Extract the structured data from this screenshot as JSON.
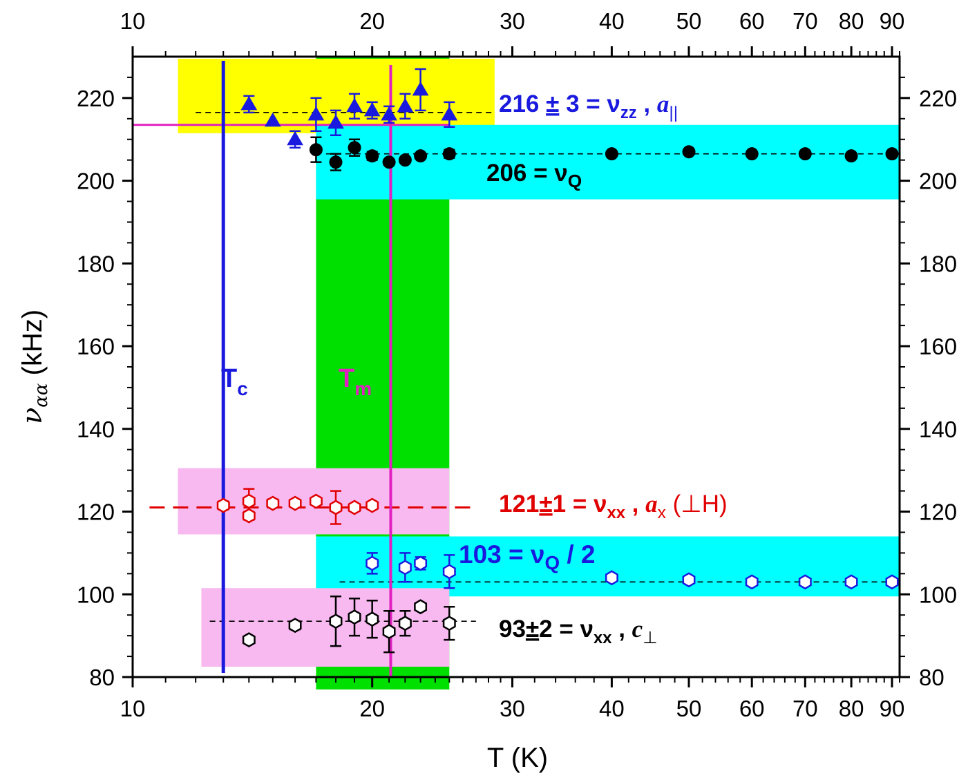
{
  "chart_data": {
    "type": "scatter",
    "xlabel": "T (K)",
    "ylabel_main": "ν",
    "ylabel_sub": "αα",
    "ylabel_unit": "(kHz)",
    "x_scale": "log",
    "xlim": [
      10,
      92
    ],
    "ylim": [
      80,
      230
    ],
    "x_ticks": [
      10,
      20,
      30,
      40,
      50,
      60,
      70,
      80,
      90
    ],
    "y_ticks": [
      80,
      100,
      120,
      140,
      160,
      180,
      200,
      220
    ],
    "colors": {
      "yellow_band": "#ffff00",
      "cyan_band": "#00ffff",
      "green_band": "#00e000",
      "pink_band": "#f8b8f0",
      "blue": "#1a1adf",
      "magenta": "#e020c0",
      "red": "#e00000",
      "black": "#000000"
    },
    "bands": [
      {
        "name": "yellow-band-top",
        "color": "#ffff00",
        "x": [
          11.4,
          28.5
        ],
        "y": [
          211.5,
          229.5
        ]
      },
      {
        "name": "cyan-band-vq",
        "color": "#00ffff",
        "x": [
          17,
          92
        ],
        "y": [
          195.5,
          213.5
        ]
      },
      {
        "name": "green-band-tm",
        "color": "#00e000",
        "x": [
          17,
          25
        ],
        "y": [
          77,
          230
        ]
      },
      {
        "name": "pink-band-121",
        "color": "#f8b8f0",
        "x": [
          11.4,
          25
        ],
        "y": [
          114.5,
          130.5
        ]
      },
      {
        "name": "cyan-band-103",
        "color": "#00ffff",
        "x": [
          17,
          92
        ],
        "y": [
          99.5,
          114
        ]
      },
      {
        "name": "pink-band-93",
        "color": "#f8b8f0",
        "x": [
          12.2,
          25
        ],
        "y": [
          82.5,
          101.5
        ]
      }
    ],
    "lines": {
      "Tc": {
        "x": 13.0,
        "y": [
          81,
          229
        ],
        "color": "#1a1adf",
        "label": "T",
        "sub": "c"
      },
      "Tm": {
        "x": 21.1,
        "y": [
          80,
          228
        ],
        "color": "#e020c0",
        "label": "T",
        "sub": "m"
      },
      "magenta_h": {
        "x": [
          10,
          25
        ],
        "y": 213.5,
        "color": "#e020c0"
      }
    },
    "fits": [
      {
        "name": "nu-zz",
        "value": 216.5,
        "x": [
          12.0,
          28.5
        ],
        "color": "#000000",
        "dashed": true
      },
      {
        "name": "nu-q",
        "value": 206.5,
        "x": [
          17.5,
          92
        ],
        "color": "#000000",
        "dashed": true
      },
      {
        "name": "nu-xx-a",
        "value": 121,
        "x": [
          10.5,
          27
        ],
        "color": "#e00000",
        "dashed": true
      },
      {
        "name": "nu-q-half",
        "value": 103,
        "x": [
          18.2,
          92
        ],
        "color": "#000000",
        "dashed": true
      },
      {
        "name": "nu-xx-c",
        "value": 93.5,
        "x": [
          12.5,
          27
        ],
        "color": "#000000",
        "dashed": true
      }
    ],
    "series": [
      {
        "name": "",
        "marker": "triangle",
        "fill": "#1a1adf",
        "stroke": "#1a1adf",
        "points": [
          {
            "x": 14.0,
            "y": 218.5,
            "err": 2
          },
          {
            "x": 15.0,
            "y": 214.5,
            "err": 0
          },
          {
            "x": 16.0,
            "y": 210.0,
            "err": 2
          },
          {
            "x": 17.0,
            "y": 216.0,
            "err": 4
          },
          {
            "x": 18.0,
            "y": 214.0,
            "err": 3
          },
          {
            "x": 19.0,
            "y": 218.0,
            "err": 3
          },
          {
            "x": 20.0,
            "y": 217.0,
            "err": 2
          },
          {
            "x": 21.0,
            "y": 216.0,
            "err": 2
          },
          {
            "x": 22.0,
            "y": 218.0,
            "err": 3
          },
          {
            "x": 23.0,
            "y": 222.0,
            "err": 5
          },
          {
            "x": 25.0,
            "y": 216.0,
            "err": 3
          }
        ]
      },
      {
        "name": "",
        "marker": "circle",
        "fill": "#000000",
        "stroke": "#000000",
        "points": [
          {
            "x": 17.0,
            "y": 207.5,
            "err": 3
          },
          {
            "x": 18.0,
            "y": 204.5,
            "err": 2
          },
          {
            "x": 19.0,
            "y": 208.0,
            "err": 2
          },
          {
            "x": 20.0,
            "y": 206.0,
            "err": 1
          },
          {
            "x": 21.0,
            "y": 204.5,
            "err": 0
          },
          {
            "x": 22.0,
            "y": 205.0,
            "err": 0
          },
          {
            "x": 23.0,
            "y": 206.0,
            "err": 0
          },
          {
            "x": 25.0,
            "y": 206.5,
            "err": 1
          },
          {
            "x": 40.0,
            "y": 206.5,
            "err": 0
          },
          {
            "x": 50.0,
            "y": 207.0,
            "err": 0
          },
          {
            "x": 60.0,
            "y": 206.5,
            "err": 0
          },
          {
            "x": 70.0,
            "y": 206.5,
            "err": 0
          },
          {
            "x": 80.0,
            "y": 206.0,
            "err": 0
          },
          {
            "x": 90.0,
            "y": 206.5,
            "err": 0
          }
        ]
      },
      {
        "name": "",
        "marker": "hexagon",
        "fill": "#ffffff",
        "stroke": "#e00000",
        "points": [
          {
            "x": 13.0,
            "y": 121.5,
            "err": 1
          },
          {
            "x": 14.0,
            "y": 122.5,
            "err": 3
          },
          {
            "x": 14.0,
            "y": 119.0,
            "err": 1
          },
          {
            "x": 15.0,
            "y": 122.0,
            "err": 1
          },
          {
            "x": 16.0,
            "y": 122.0,
            "err": 0
          },
          {
            "x": 17.0,
            "y": 122.5,
            "err": 0
          },
          {
            "x": 18.0,
            "y": 121.0,
            "err": 4
          },
          {
            "x": 19.0,
            "y": 121.0,
            "err": 0
          },
          {
            "x": 20.0,
            "y": 121.5,
            "err": 0
          }
        ]
      },
      {
        "name": "",
        "marker": "hexagon",
        "fill": "#ffffff",
        "stroke": "#1a1adf",
        "points": [
          {
            "x": 20.0,
            "y": 107.5,
            "err": 2.5
          },
          {
            "x": 22.0,
            "y": 106.5,
            "err": 3.5
          },
          {
            "x": 23.0,
            "y": 107.5,
            "err": 1.5
          },
          {
            "x": 25.0,
            "y": 105.5,
            "err": 4
          },
          {
            "x": 40.0,
            "y": 104.0,
            "err": 0
          },
          {
            "x": 50.0,
            "y": 103.5,
            "err": 0
          },
          {
            "x": 60.0,
            "y": 103.0,
            "err": 0
          },
          {
            "x": 70.0,
            "y": 103.0,
            "err": 0
          },
          {
            "x": 80.0,
            "y": 103.0,
            "err": 0
          },
          {
            "x": 90.0,
            "y": 103.0,
            "err": 0
          }
        ]
      },
      {
        "name": "",
        "marker": "hexagon",
        "fill": "#ffffff",
        "stroke": "#000000",
        "points": [
          {
            "x": 14.0,
            "y": 89.0,
            "err": 0
          },
          {
            "x": 16.0,
            "y": 92.5,
            "err": 1
          },
          {
            "x": 18.0,
            "y": 93.5,
            "err": 6
          },
          {
            "x": 19.0,
            "y": 94.5,
            "err": 4.5
          },
          {
            "x": 20.0,
            "y": 94.0,
            "err": 4.5
          },
          {
            "x": 21.0,
            "y": 91.0,
            "err": 5
          },
          {
            "x": 22.0,
            "y": 93.0,
            "err": 3
          },
          {
            "x": 23.0,
            "y": 97.0,
            "err": 0
          },
          {
            "x": 25.0,
            "y": 93.0,
            "err": 4
          }
        ]
      }
    ],
    "annotations": {
      "zz": {
        "main": "216 ",
        "pm": "±",
        "rest": " 3  =  ν",
        "sub1": "zz",
        "mid": " , ",
        "ital": "a",
        "sub2": "||",
        "color": "#1a1adf"
      },
      "q": {
        "main": "206 = ν",
        "sub": "Q",
        "color": "#000000"
      },
      "xxa": {
        "main": "121",
        "pm": "±",
        "rest": "1 = ν",
        "sub1": "xx",
        "mid": " , ",
        "ital": "a",
        "sub2": "x",
        "tail": " (⊥H)",
        "color": "#e00000"
      },
      "qhalf": {
        "main": "103 = ν",
        "sub": "Q",
        "tail": " / 2",
        "color": "#1a1adf"
      },
      "xxc": {
        "main": "93",
        "pm": "±",
        "rest": "2 = ν",
        "sub1": "xx",
        "mid": " , ",
        "ital": "c",
        "sub2": "⊥",
        "color": "#000000"
      }
    }
  }
}
